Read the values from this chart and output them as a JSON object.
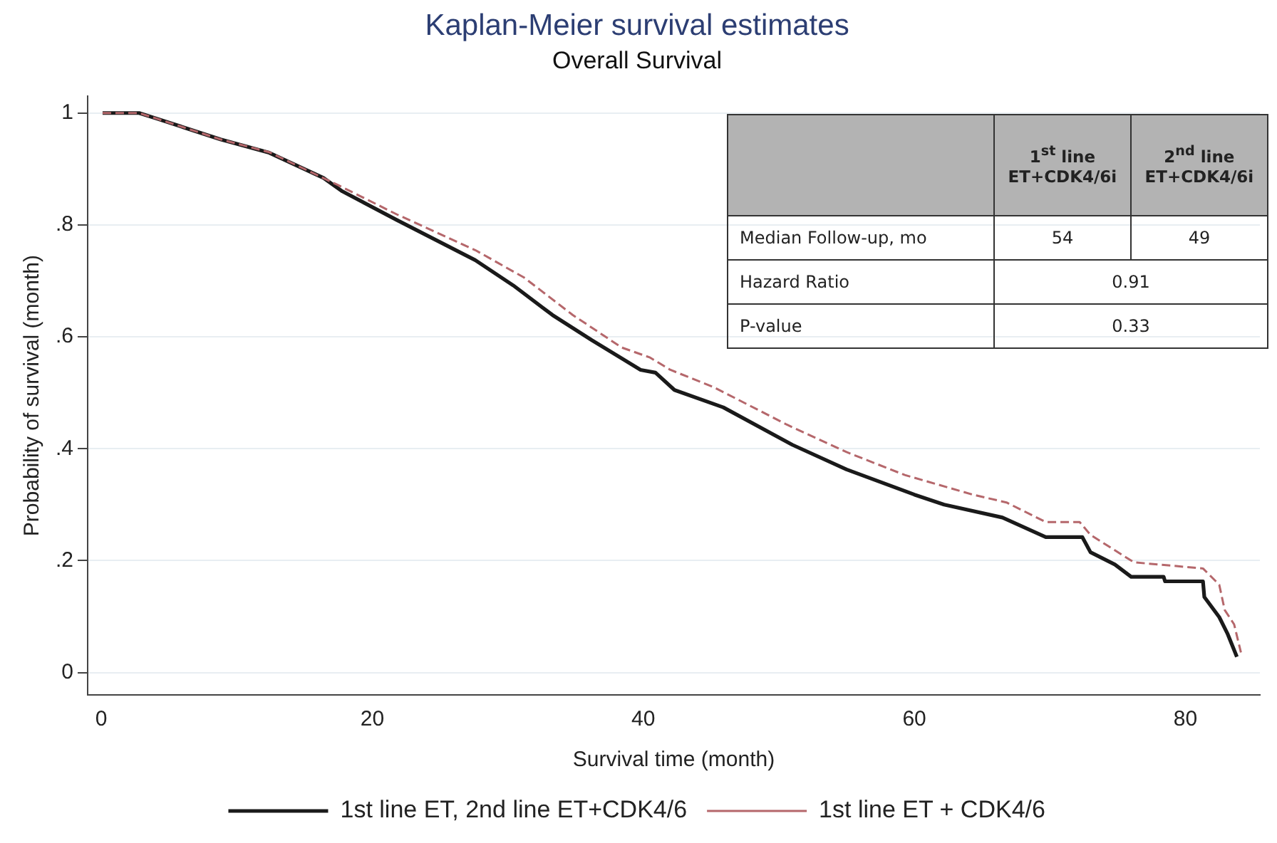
{
  "chart_data": {
    "type": "line",
    "title": "Kaplan-Meier survival estimates",
    "subtitle": "Overall Survival",
    "xlabel": "Survival time (month)",
    "ylabel": "Probability of survival (month)",
    "xlim": [
      -1,
      85.5
    ],
    "xticks": [
      0,
      20,
      40,
      60,
      80
    ],
    "ylim": [
      -0.04,
      1.03
    ],
    "yticks": [
      {
        "value": 0,
        "label": "0"
      },
      {
        "value": 0.2,
        "label": ".2"
      },
      {
        "value": 0.4,
        "label": ".4"
      },
      {
        "value": 0.6,
        "label": ".6"
      },
      {
        "value": 0.8,
        "label": ".8"
      },
      {
        "value": 1,
        "label": "1"
      }
    ],
    "grid": "y",
    "legend": "bottom",
    "marker": "none",
    "series": [
      {
        "name": "1st line ET, 2nd line ET+CDK4/6",
        "color": "#1a1a1a",
        "line_style": "solid",
        "x": [
          0.1,
          2.8,
          4.1,
          8.8,
          12.4,
          16.4,
          17.8,
          21.8,
          27.6,
          30.4,
          33.3,
          36.2,
          39.8,
          40.9,
          42.3,
          45.9,
          51.0,
          55.0,
          60.0,
          62.2,
          66.5,
          69.7,
          72.4,
          73.0,
          74.8,
          76.0,
          78.4,
          78.5,
          81.3,
          81.4,
          82.5,
          83.1,
          83.8
        ],
        "values": [
          1.0,
          1.0,
          0.99,
          0.953,
          0.929,
          0.884,
          0.86,
          0.809,
          0.737,
          0.692,
          0.639,
          0.594,
          0.541,
          0.536,
          0.505,
          0.474,
          0.407,
          0.363,
          0.318,
          0.3,
          0.277,
          0.242,
          0.242,
          0.215,
          0.193,
          0.171,
          0.171,
          0.163,
          0.163,
          0.135,
          0.099,
          0.07,
          0.028
        ]
      },
      {
        "name": "1st line ET + CDK4/6",
        "color": "#b5676b",
        "line_style": "dashed",
        "x": [
          0.1,
          2.8,
          4.1,
          8.8,
          12.4,
          17.5,
          21.8,
          27.6,
          31.2,
          34.8,
          38.4,
          40.5,
          42.0,
          45.2,
          50.6,
          55.0,
          59.3,
          64.3,
          66.8,
          69.7,
          72.2,
          73.0,
          76.2,
          81.3,
          82.5,
          82.9,
          83.6,
          84.1
        ],
        "values": [
          1.0,
          1.0,
          0.99,
          0.953,
          0.93,
          0.871,
          0.819,
          0.755,
          0.706,
          0.639,
          0.581,
          0.563,
          0.541,
          0.51,
          0.443,
          0.394,
          0.353,
          0.318,
          0.304,
          0.269,
          0.269,
          0.246,
          0.197,
          0.186,
          0.157,
          0.112,
          0.086,
          0.036
        ]
      }
    ],
    "annotations": [
      "1$^{st}$ line ET+CDK4/6i",
      "2$^{nd}$ line ET+CDK4/6i",
      "Median Follow-up, mo",
      "54",
      "49",
      "Hazard Ratio",
      "0.91",
      "P-value",
      "0.33"
    ]
  }
}
